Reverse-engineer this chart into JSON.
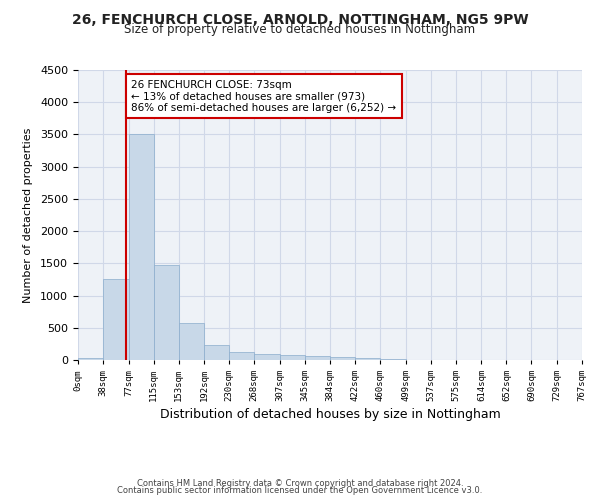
{
  "title1": "26, FENCHURCH CLOSE, ARNOLD, NOTTINGHAM, NG5 9PW",
  "title2": "Size of property relative to detached houses in Nottingham",
  "xlabel": "Distribution of detached houses by size in Nottingham",
  "ylabel": "Number of detached properties",
  "footer1": "Contains HM Land Registry data © Crown copyright and database right 2024.",
  "footer2": "Contains public sector information licensed under the Open Government Licence v3.0.",
  "annotation_title": "26 FENCHURCH CLOSE: 73sqm",
  "annotation_line1": "← 13% of detached houses are smaller (973)",
  "annotation_line2": "86% of semi-detached houses are larger (6,252) →",
  "property_size": 73,
  "bar_edges": [
    0,
    38,
    77,
    115,
    153,
    192,
    230,
    268,
    307,
    345,
    384,
    422,
    460,
    499,
    537,
    575,
    614,
    652,
    690,
    729,
    767
  ],
  "bar_values": [
    30,
    1250,
    3500,
    1470,
    580,
    230,
    120,
    90,
    70,
    55,
    45,
    30,
    20,
    5,
    0,
    0,
    0,
    0,
    0,
    0
  ],
  "bar_color": "#c8d8e8",
  "bar_edge_color": "#8aaccc",
  "vline_color": "#cc0000",
  "annotation_box_color": "#cc0000",
  "grid_color": "#d0d8e8",
  "ylim": [
    0,
    4500
  ],
  "xlim": [
    0,
    767
  ],
  "bg_color": "#eef2f7"
}
